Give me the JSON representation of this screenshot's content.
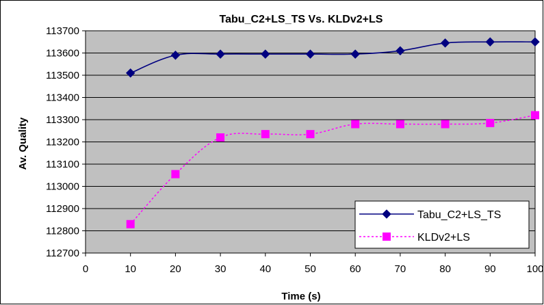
{
  "chart_data": {
    "type": "line",
    "title": "Tabu_C2+LS_TS Vs. KLDv2+LS",
    "xlabel": "Time (s)",
    "ylabel": "Av. Quality",
    "xlim": [
      0,
      100
    ],
    "ylim": [
      112700,
      113700
    ],
    "x_ticks": [
      "0",
      "10",
      "20",
      "30",
      "40",
      "50",
      "60",
      "70",
      "80",
      "90",
      "100"
    ],
    "y_ticks": [
      "112700",
      "112800",
      "112900",
      "113000",
      "113100",
      "113200",
      "113300",
      "113400",
      "113500",
      "113600",
      "113700"
    ],
    "grid": "horizontal",
    "legend_position": "bottom-right",
    "plot_background": "#c0c0c0",
    "series": [
      {
        "name": "Tabu_C2+LS_TS",
        "color": "#000080",
        "marker": "diamond",
        "line_style": "solid",
        "x": [
          10,
          20,
          30,
          40,
          50,
          60,
          70,
          80,
          90,
          100
        ],
        "values": [
          113510,
          113590,
          113595,
          113595,
          113595,
          113595,
          113610,
          113645,
          113650,
          113650
        ]
      },
      {
        "name": "KLDv2+LS",
        "color": "#ff00ff",
        "marker": "square",
        "line_style": "dashed",
        "x": [
          10,
          20,
          30,
          40,
          50,
          60,
          70,
          80,
          90,
          100
        ],
        "values": [
          112830,
          113055,
          113220,
          113235,
          113235,
          113280,
          113280,
          113280,
          113285,
          113320
        ]
      }
    ]
  }
}
